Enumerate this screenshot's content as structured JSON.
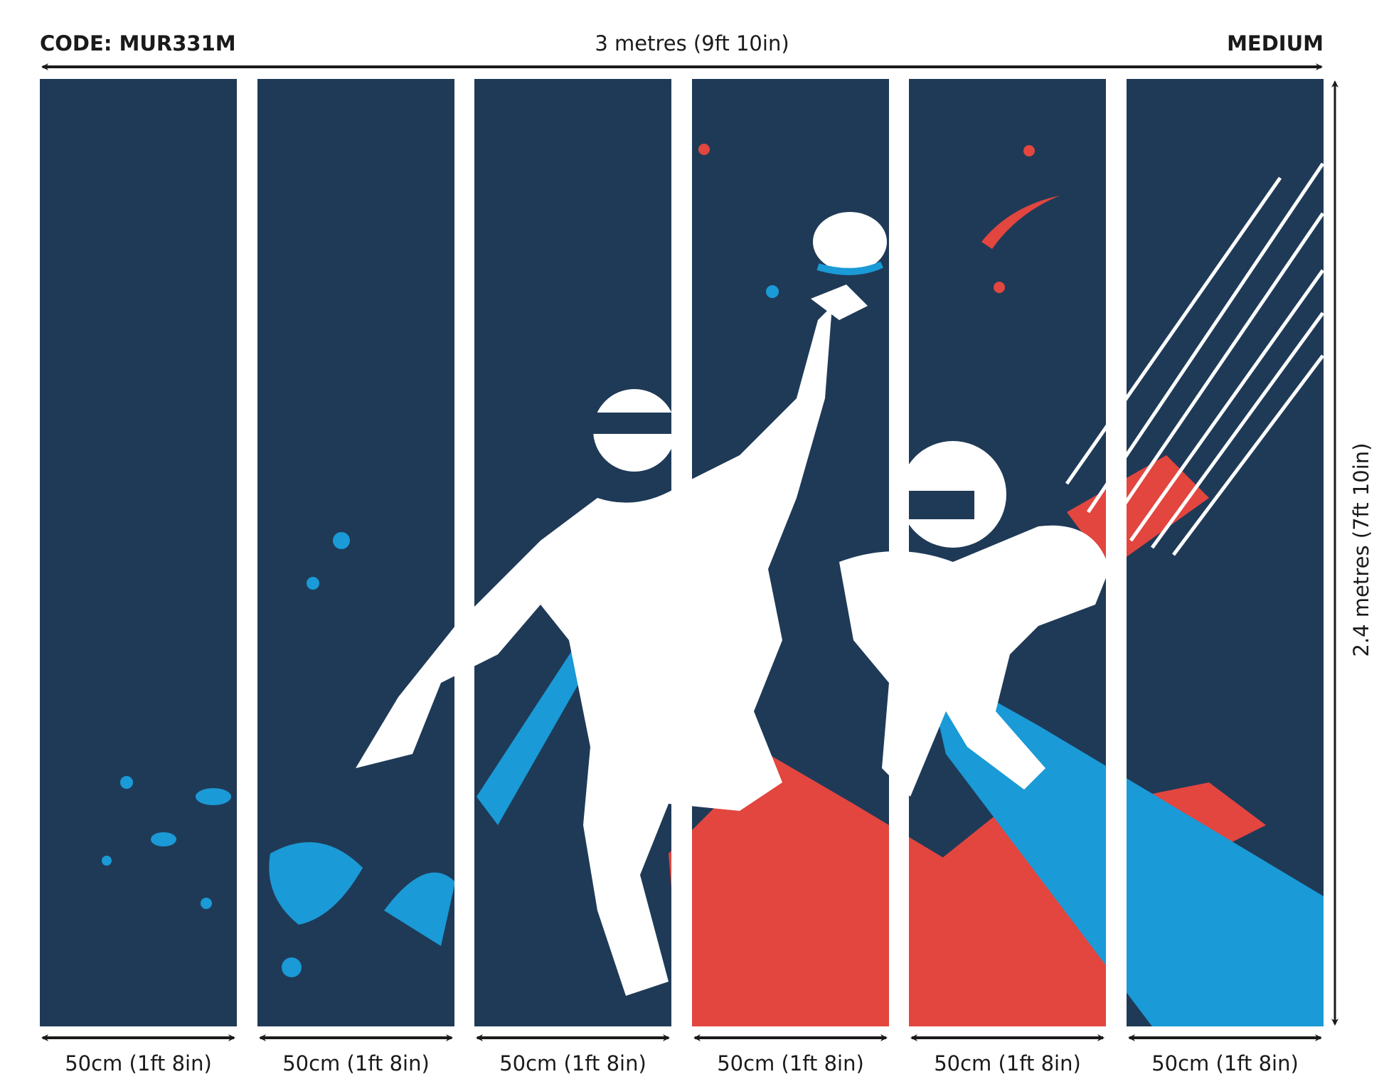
{
  "header": {
    "code": "CODE: MUR331M",
    "total_width": "3 metres (9ft 10in)",
    "size": "MEDIUM"
  },
  "total_height": "2.4 metres (7ft 10in)",
  "panels": [
    {
      "width": "50cm (1ft 8in)"
    },
    {
      "width": "50cm (1ft 8in)"
    },
    {
      "width": "50cm (1ft 8in)"
    },
    {
      "width": "50cm (1ft 8in)"
    },
    {
      "width": "50cm (1ft 8in)"
    },
    {
      "width": "50cm (1ft 8in)"
    }
  ],
  "colors": {
    "navy": "#1f3a57",
    "blue": "#1a9ad6",
    "red": "#e2463f",
    "white": "#ffffff"
  }
}
